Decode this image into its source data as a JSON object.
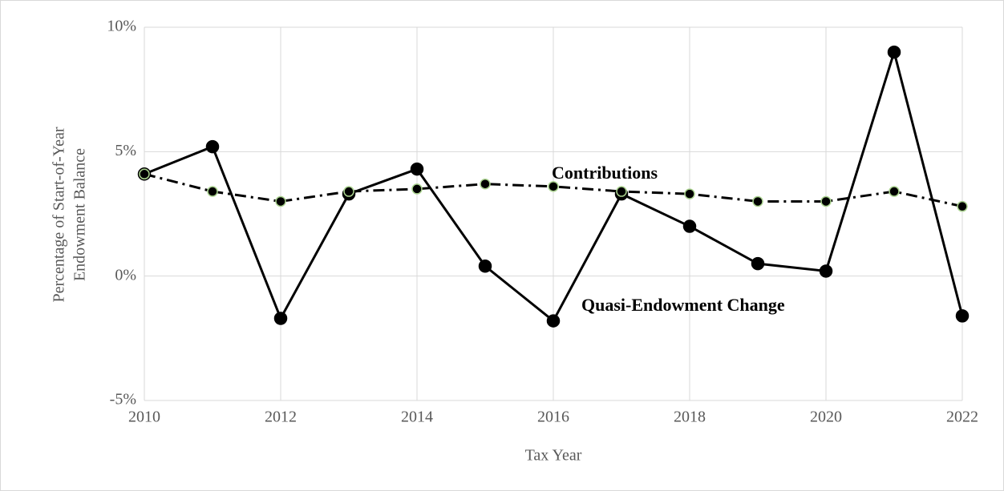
{
  "chart_data": {
    "type": "line",
    "xlabel": "Tax Year",
    "ylabel": [
      "Percentage of Start-of-Year",
      "Endowment Balance"
    ],
    "x": [
      2010,
      2011,
      2012,
      2013,
      2014,
      2015,
      2016,
      2017,
      2018,
      2019,
      2020,
      2021,
      2022
    ],
    "series": [
      {
        "name": "Quasi-Endowment Change",
        "color": "#000000",
        "dash": "solid",
        "values": [
          4.1,
          5.2,
          -1.7,
          3.3,
          4.3,
          0.4,
          -1.8,
          3.3,
          2.0,
          0.5,
          0.2,
          9.0,
          -1.6
        ]
      },
      {
        "name": "Contributions",
        "color": "#000000",
        "dash": "dashdot",
        "values": [
          4.1,
          3.4,
          3.0,
          3.4,
          3.5,
          3.7,
          3.6,
          3.4,
          3.3,
          3.0,
          3.0,
          3.4,
          2.8
        ]
      }
    ],
    "xlim": [
      2010,
      2022
    ],
    "xticks": [
      2010,
      2012,
      2014,
      2016,
      2018,
      2020,
      2022
    ],
    "ylim": [
      -5,
      10
    ],
    "yticks": [
      {
        "value": -5,
        "label": "-5%"
      },
      {
        "value": 0,
        "label": "0%"
      },
      {
        "value": 5,
        "label": "5%"
      },
      {
        "value": 10,
        "label": "10%"
      }
    ],
    "grid": true
  }
}
